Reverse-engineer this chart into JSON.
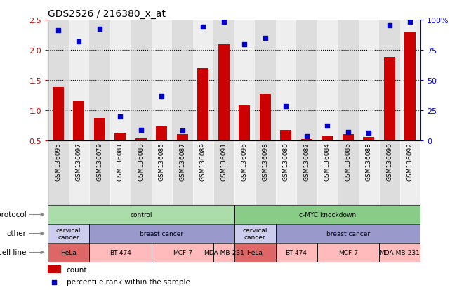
{
  "title": "GDS2526 / 216380_x_at",
  "samples": [
    "GSM136095",
    "GSM136097",
    "GSM136079",
    "GSM136081",
    "GSM136083",
    "GSM136085",
    "GSM136087",
    "GSM136089",
    "GSM136091",
    "GSM136096",
    "GSM136098",
    "GSM136080",
    "GSM136082",
    "GSM136084",
    "GSM136086",
    "GSM136088",
    "GSM136090",
    "GSM136092"
  ],
  "bar_values": [
    1.38,
    1.15,
    0.87,
    0.63,
    0.54,
    0.73,
    0.6,
    1.7,
    2.09,
    1.08,
    1.27,
    0.68,
    0.52,
    0.58,
    0.6,
    0.56,
    1.88,
    2.3
  ],
  "scatter_values": [
    2.33,
    2.14,
    2.35,
    0.9,
    0.68,
    1.23,
    0.66,
    2.38,
    2.46,
    2.09,
    2.2,
    1.07,
    0.57,
    0.75,
    0.64,
    0.63,
    2.41,
    2.46
  ],
  "ylim_left": [
    0.5,
    2.5
  ],
  "ylim_right": [
    0,
    100
  ],
  "yticks_left": [
    0.5,
    1.0,
    1.5,
    2.0,
    2.5
  ],
  "yticks_right": [
    0,
    25,
    50,
    75,
    100
  ],
  "bar_color": "#cc0000",
  "scatter_color": "#0000cc",
  "background_color": "#ffffff",
  "protocol_segments": [
    {
      "text": "control",
      "start": 0,
      "end": 9,
      "color": "#aaddaa"
    },
    {
      "text": "c-MYC knockdown",
      "start": 9,
      "end": 18,
      "color": "#88cc88"
    }
  ],
  "other_segments": [
    {
      "text": "cervical\ncancer",
      "start": 0,
      "end": 2,
      "color": "#ccccee"
    },
    {
      "text": "breast cancer",
      "start": 2,
      "end": 9,
      "color": "#9999cc"
    },
    {
      "text": "cervical\ncancer",
      "start": 9,
      "end": 11,
      "color": "#ccccee"
    },
    {
      "text": "breast cancer",
      "start": 11,
      "end": 18,
      "color": "#9999cc"
    }
  ],
  "cellline_segments": [
    {
      "text": "HeLa",
      "start": 0,
      "end": 2,
      "color": "#dd6666"
    },
    {
      "text": "BT-474",
      "start": 2,
      "end": 5,
      "color": "#ffbbbb"
    },
    {
      "text": "MCF-7",
      "start": 5,
      "end": 8,
      "color": "#ffbbbb"
    },
    {
      "text": "MDA-MB-231",
      "start": 8,
      "end": 9,
      "color": "#ffbbbb"
    },
    {
      "text": "HeLa",
      "start": 9,
      "end": 11,
      "color": "#dd6666"
    },
    {
      "text": "BT-474",
      "start": 11,
      "end": 13,
      "color": "#ffbbbb"
    },
    {
      "text": "MCF-7",
      "start": 13,
      "end": 16,
      "color": "#ffbbbb"
    },
    {
      "text": "MDA-MB-231",
      "start": 16,
      "end": 18,
      "color": "#ffbbbb"
    }
  ],
  "col_stripe_colors": [
    "#dddddd",
    "#eeeeee"
  ],
  "legend_items": [
    {
      "label": "count",
      "color": "#cc0000"
    },
    {
      "label": "percentile rank within the sample",
      "color": "#0000cc"
    }
  ]
}
